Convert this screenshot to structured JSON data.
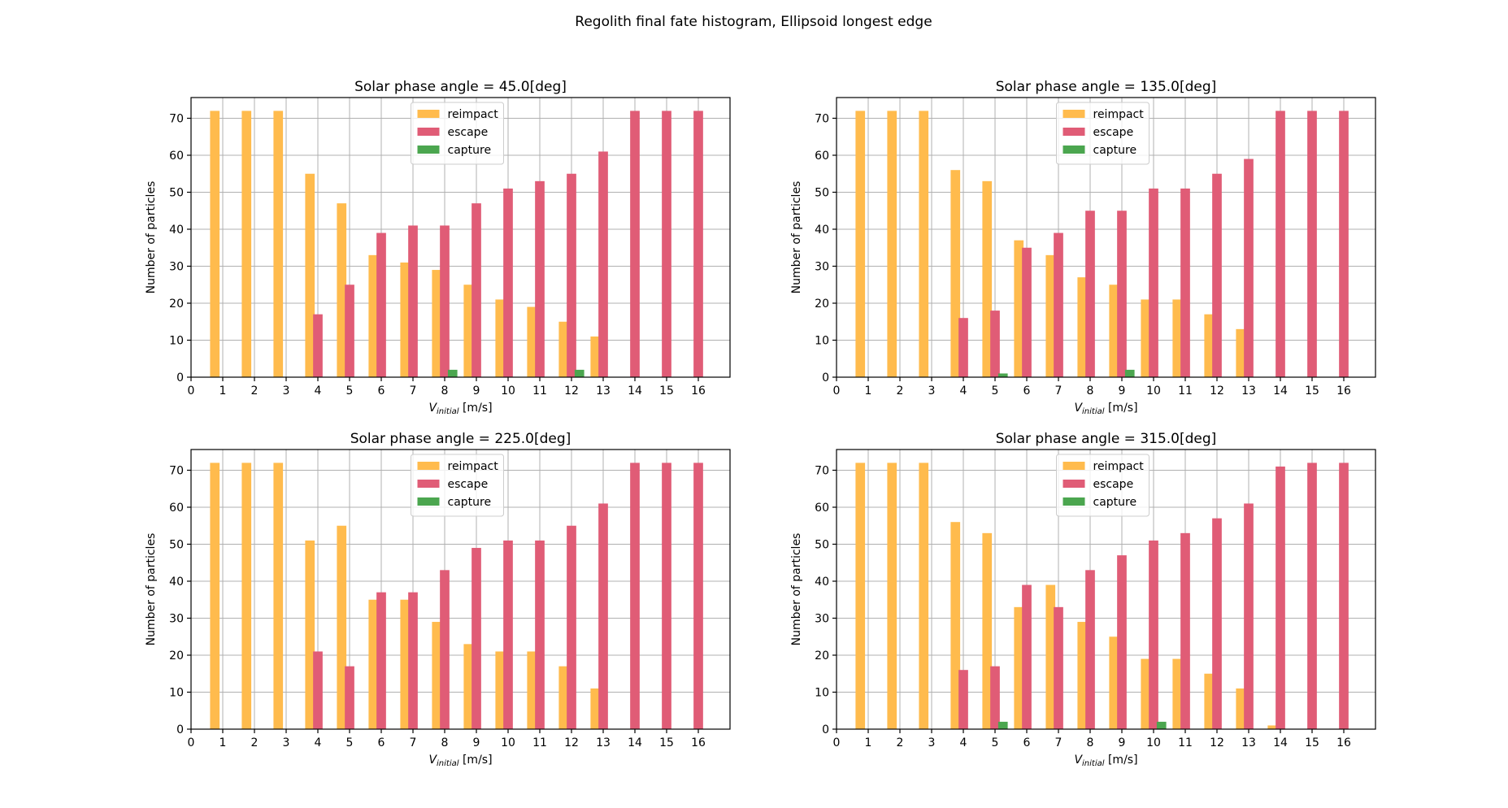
{
  "figure": {
    "suptitle": "Regolith final fate histogram, Ellipsoid longest edge"
  },
  "colors": {
    "reimpact": "#ffbb4d",
    "escape": "#e05c76",
    "capture": "#4ba64f"
  },
  "chart_data": [
    {
      "type": "bar",
      "title": "Solar phase angle = 45.0[deg]",
      "xlabel_main": "V",
      "xlabel_sub": "initial",
      "xlabel_unit": " [m/s]",
      "ylabel": "Number of particles",
      "xlim": [
        0,
        17
      ],
      "ylim": [
        0,
        75.6
      ],
      "xticks": [
        0,
        1,
        2,
        3,
        4,
        5,
        6,
        7,
        8,
        9,
        10,
        11,
        12,
        13,
        14,
        15,
        16
      ],
      "yticks": [
        0,
        10,
        20,
        30,
        40,
        50,
        60,
        70
      ],
      "grid": true,
      "legend_position": "upper-center",
      "categories": [
        1,
        2,
        3,
        4,
        5,
        6,
        7,
        8,
        9,
        10,
        11,
        12,
        13,
        14,
        15,
        16
      ],
      "series": [
        {
          "name": "reimpact",
          "values": [
            72,
            72,
            72,
            55,
            47,
            33,
            31,
            29,
            25,
            21,
            19,
            15,
            11,
            0,
            0,
            0
          ]
        },
        {
          "name": "escape",
          "values": [
            0,
            0,
            0,
            17,
            25,
            39,
            41,
            41,
            47,
            51,
            53,
            55,
            61,
            72,
            72,
            72
          ]
        },
        {
          "name": "capture",
          "values": [
            0,
            0,
            0,
            0,
            0,
            0,
            0,
            2,
            0,
            0,
            0,
            2,
            0,
            0,
            0,
            0
          ]
        }
      ]
    },
    {
      "type": "bar",
      "title": "Solar phase angle = 135.0[deg]",
      "xlabel_main": "V",
      "xlabel_sub": "initial",
      "xlabel_unit": " [m/s]",
      "ylabel": "Number of particles",
      "xlim": [
        0,
        17
      ],
      "ylim": [
        0,
        75.6
      ],
      "xticks": [
        0,
        1,
        2,
        3,
        4,
        5,
        6,
        7,
        8,
        9,
        10,
        11,
        12,
        13,
        14,
        15,
        16
      ],
      "yticks": [
        0,
        10,
        20,
        30,
        40,
        50,
        60,
        70
      ],
      "grid": true,
      "legend_position": "upper-center",
      "categories": [
        1,
        2,
        3,
        4,
        5,
        6,
        7,
        8,
        9,
        10,
        11,
        12,
        13,
        14,
        15,
        16
      ],
      "series": [
        {
          "name": "reimpact",
          "values": [
            72,
            72,
            72,
            56,
            53,
            37,
            33,
            27,
            25,
            21,
            21,
            17,
            13,
            0,
            0,
            0
          ]
        },
        {
          "name": "escape",
          "values": [
            0,
            0,
            0,
            16,
            18,
            35,
            39,
            45,
            45,
            51,
            51,
            55,
            59,
            72,
            72,
            72
          ]
        },
        {
          "name": "capture",
          "values": [
            0,
            0,
            0,
            0,
            1,
            0,
            0,
            0,
            2,
            0,
            0,
            0,
            0,
            0,
            0,
            0
          ]
        }
      ]
    },
    {
      "type": "bar",
      "title": "Solar phase angle = 225.0[deg]",
      "xlabel_main": "V",
      "xlabel_sub": "initial",
      "xlabel_unit": " [m/s]",
      "ylabel": "Number of particles",
      "xlim": [
        0,
        17
      ],
      "ylim": [
        0,
        75.6
      ],
      "xticks": [
        0,
        1,
        2,
        3,
        4,
        5,
        6,
        7,
        8,
        9,
        10,
        11,
        12,
        13,
        14,
        15,
        16
      ],
      "yticks": [
        0,
        10,
        20,
        30,
        40,
        50,
        60,
        70
      ],
      "grid": true,
      "legend_position": "upper-center",
      "categories": [
        1,
        2,
        3,
        4,
        5,
        6,
        7,
        8,
        9,
        10,
        11,
        12,
        13,
        14,
        15,
        16
      ],
      "series": [
        {
          "name": "reimpact",
          "values": [
            72,
            72,
            72,
            51,
            55,
            35,
            35,
            29,
            23,
            21,
            21,
            17,
            11,
            0,
            0,
            0
          ]
        },
        {
          "name": "escape",
          "values": [
            0,
            0,
            0,
            21,
            17,
            37,
            37,
            43,
            49,
            51,
            51,
            55,
            61,
            72,
            72,
            72
          ]
        },
        {
          "name": "capture",
          "values": [
            0,
            0,
            0,
            0,
            0,
            0,
            0,
            0,
            0,
            0,
            0,
            0,
            0,
            0,
            0,
            0
          ]
        }
      ]
    },
    {
      "type": "bar",
      "title": "Solar phase angle = 315.0[deg]",
      "xlabel_main": "V",
      "xlabel_sub": "initial",
      "xlabel_unit": " [m/s]",
      "ylabel": "Number of particles",
      "xlim": [
        0,
        17
      ],
      "ylim": [
        0,
        75.6
      ],
      "xticks": [
        0,
        1,
        2,
        3,
        4,
        5,
        6,
        7,
        8,
        9,
        10,
        11,
        12,
        13,
        14,
        15,
        16
      ],
      "yticks": [
        0,
        10,
        20,
        30,
        40,
        50,
        60,
        70
      ],
      "grid": true,
      "legend_position": "upper-center",
      "categories": [
        1,
        2,
        3,
        4,
        5,
        6,
        7,
        8,
        9,
        10,
        11,
        12,
        13,
        14,
        15,
        16
      ],
      "series": [
        {
          "name": "reimpact",
          "values": [
            72,
            72,
            72,
            56,
            53,
            33,
            39,
            29,
            25,
            19,
            19,
            15,
            11,
            1,
            0,
            0
          ]
        },
        {
          "name": "escape",
          "values": [
            0,
            0,
            0,
            16,
            17,
            39,
            33,
            43,
            47,
            51,
            53,
            57,
            61,
            71,
            72,
            72
          ]
        },
        {
          "name": "capture",
          "values": [
            0,
            0,
            0,
            0,
            2,
            0,
            0,
            0,
            0,
            2,
            0,
            0,
            0,
            0,
            0,
            0
          ]
        }
      ]
    }
  ]
}
